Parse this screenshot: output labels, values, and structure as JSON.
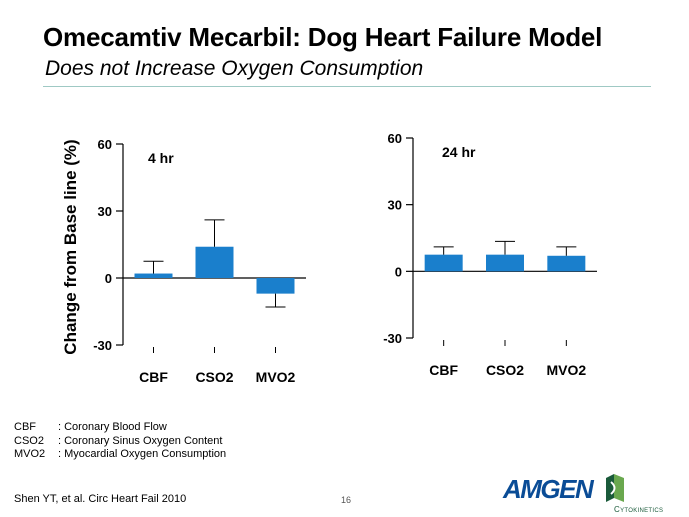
{
  "slide": {
    "title": "Omecamtiv Mecarbil: Dog Heart Failure Model",
    "subtitle": "Does not Increase Oxygen Consumption"
  },
  "colors": {
    "bar": "#1a7fcc",
    "rule": "#9fc9c4",
    "amgen": "#0a4c96",
    "cyto": "#1a5a3a"
  },
  "chart_data": [
    {
      "type": "bar",
      "title": "4 hr",
      "ylabel": "Change from Base line (%)",
      "categories": [
        "CBF",
        "CSO2",
        "MVO2"
      ],
      "values": [
        2,
        14,
        -7
      ],
      "error_upper": [
        5.5,
        12,
        -6
      ],
      "ylim": [
        -30,
        60
      ],
      "yticks": [
        -30,
        0,
        30,
        60
      ]
    },
    {
      "type": "bar",
      "title": "24 hr",
      "ylabel": "",
      "categories": [
        "CBF",
        "CSO2",
        "MVO2"
      ],
      "values": [
        7.5,
        7.5,
        7
      ],
      "error_upper": [
        3.5,
        6,
        4
      ],
      "ylim": [
        -30,
        60
      ],
      "yticks": [
        -30,
        0,
        30,
        60
      ]
    }
  ],
  "legend": [
    {
      "abbr": "CBF",
      "desc": ": Coronary Blood Flow"
    },
    {
      "abbr": "CSO2",
      "desc": ": Coronary Sinus Oxygen Content"
    },
    {
      "abbr": "MVO2",
      "desc": ": Myocardial Oxygen Consumption"
    }
  ],
  "footer": {
    "citation": "Shen YT,  et al.  Circ Heart Fail 2010",
    "page": "16"
  },
  "logos": {
    "amgen": "AMGEN",
    "cytokinetics": "Cytokinetics"
  }
}
